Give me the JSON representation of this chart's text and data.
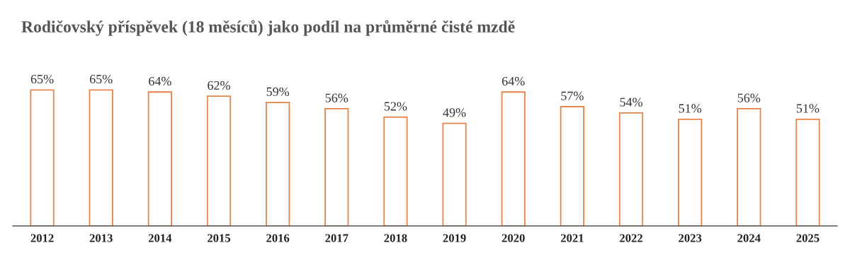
{
  "chart_data": {
    "type": "bar",
    "title": "Rodičovský příspěvek (18 měsíců) jako podíl na průměrné čisté mzdě",
    "categories": [
      "2012",
      "2013",
      "2014",
      "2015",
      "2016",
      "2017",
      "2018",
      "2019",
      "2020",
      "2021",
      "2022",
      "2023",
      "2024",
      "2025"
    ],
    "values": [
      65,
      65,
      64,
      62,
      59,
      56,
      52,
      49,
      64,
      57,
      54,
      51,
      56,
      51
    ],
    "value_labels": [
      "65%",
      "65%",
      "64%",
      "62%",
      "59%",
      "56%",
      "52%",
      "49%",
      "64%",
      "57%",
      "54%",
      "51%",
      "56%",
      "51%"
    ],
    "color": "#e8834a",
    "tick_labels": "x"
  }
}
